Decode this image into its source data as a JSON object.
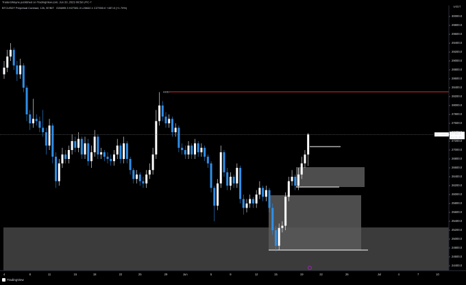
{
  "header": {
    "publisher": "TradersWayne published on TradingView.com, Jun 20, 2023 09:58 UTC-7",
    "logo": "TradingView"
  },
  "chart_data": {
    "type": "candlestick",
    "title": "BTCUSDT Perpetual Contract, 12h, BYBIT",
    "ohlc_label": "O26899.3 H27381.3 L26642.1 C27350.0 +457.8 (+1.70%)",
    "y_unit": "USDT",
    "annotations": [
      "HOD"
    ],
    "symbol_tag": "BTCUSDT P",
    "last_price_label": "27350.0",
    "countdown": "01:01:35",
    "up_color": "#ffffff",
    "down_color": "#2f8fe8",
    "ylim": [
      24292,
      30246
    ],
    "grid": false,
    "yticks": [
      {
        "value": 24400,
        "label": "24400.0"
      },
      {
        "value": 24600,
        "label": "24600.0"
      },
      {
        "value": 24800,
        "label": "24800.0"
      },
      {
        "value": 25000,
        "label": "25000.0"
      },
      {
        "value": 25200,
        "label": "25200.0"
      },
      {
        "value": 25400,
        "label": "25400.0"
      },
      {
        "value": 25600,
        "label": "25600.0"
      },
      {
        "value": 25800,
        "label": "25800.0"
      },
      {
        "value": 26000,
        "label": "26000.0"
      },
      {
        "value": 26200,
        "label": "26200.0"
      },
      {
        "value": 26400,
        "label": "26400.0"
      },
      {
        "value": 26600,
        "label": "26600.0"
      },
      {
        "value": 26800,
        "label": "26800.0"
      },
      {
        "value": 27000,
        "label": "27000.0"
      },
      {
        "value": 27200,
        "label": "27200.0"
      },
      {
        "value": 27400,
        "label": "27400.0"
      },
      {
        "value": 27600,
        "label": "27600.0"
      },
      {
        "value": 27800,
        "label": "27800.0"
      },
      {
        "value": 28000,
        "label": "28000.0"
      },
      {
        "value": 28200,
        "label": "28200.0"
      },
      {
        "value": 28400,
        "label": "28400.0"
      },
      {
        "value": 28600,
        "label": "28600.0"
      },
      {
        "value": 28800,
        "label": "28800.0"
      },
      {
        "value": 29000,
        "label": "29000.0"
      },
      {
        "value": 29200,
        "label": "29200.0"
      },
      {
        "value": 29400,
        "label": "29400.0"
      },
      {
        "value": 29600,
        "label": "29600.0"
      },
      {
        "value": 29800,
        "label": "29800.0"
      },
      {
        "value": 30000,
        "label": "30000.0"
      }
    ],
    "categories": [
      "4",
      null,
      null,
      null,
      null,
      null,
      null,
      null,
      "8",
      null,
      null,
      null,
      null,
      null,
      "11",
      null,
      null,
      null,
      null,
      null,
      null,
      null,
      "15",
      null,
      null,
      null,
      null,
      null,
      "18",
      null,
      null,
      null,
      null,
      null,
      null,
      null,
      "22",
      null,
      null,
      null,
      null,
      null,
      "25",
      null,
      null,
      null,
      null,
      null,
      null,
      null,
      "29",
      null,
      null,
      null,
      null,
      null,
      "Jun",
      null,
      null,
      null,
      null,
      null,
      null,
      null,
      "5",
      null,
      null,
      null,
      null,
      null,
      "8",
      null,
      null,
      null,
      null,
      null,
      null,
      null,
      "12",
      null,
      null,
      null,
      null,
      null,
      "15",
      null,
      null,
      null,
      null,
      null,
      null,
      null,
      "19",
      null,
      null,
      null,
      null,
      null,
      "22",
      null,
      null,
      null,
      null,
      null,
      null,
      null,
      "26",
      null,
      null,
      null,
      null,
      null,
      null,
      null,
      null,
      null,
      "Jul",
      null,
      null,
      null,
      null,
      null,
      "4",
      null,
      null,
      null,
      null,
      null,
      "7",
      null,
      null,
      null,
      null,
      null,
      "10",
      null,
      null,
      null
    ],
    "open": [
      28700,
      28850,
      29100,
      29250,
      28900,
      28700,
      28900,
      28400,
      27800,
      27600,
      27700,
      27650,
      27500,
      27400,
      27100,
      27550,
      26850,
      26300,
      26700,
      26900,
      26800,
      27000,
      27200,
      27050,
      27250,
      26900,
      27150,
      26750,
      26950,
      27300,
      26900,
      26950,
      26850,
      26800,
      26750,
      26900,
      27100,
      26800,
      27150,
      26800,
      26550,
      26350,
      26450,
      26300,
      26250,
      26450,
      26550,
      26900,
      27650,
      28000,
      27750,
      27600,
      27700,
      27400,
      27500,
      27050,
      27000,
      26900,
      27100,
      26900,
      27150,
      26950,
      27050,
      26850,
      26700,
      26150,
      25750,
      26250,
      26950,
      26500,
      26200,
      26400,
      26250,
      26600,
      25900,
      25700,
      25800,
      25900,
      25800,
      26000,
      26150,
      25950,
      26100,
      25700,
      25200,
      24850,
      25250,
      25300,
      25950,
      26300,
      26400,
      26200,
      26450,
      26700,
      26899.3,
      null,
      null,
      null,
      null,
      null,
      null,
      null,
      null,
      null,
      null,
      null,
      null,
      null,
      null,
      null,
      null,
      null,
      null,
      null,
      null,
      null,
      null,
      null,
      null,
      null,
      null,
      null,
      null,
      null,
      null,
      null,
      null,
      null,
      null,
      null,
      null,
      null,
      null,
      null,
      null,
      null,
      null,
      null
    ],
    "high": [
      29000,
      29250,
      29400,
      29300,
      29000,
      29050,
      28950,
      28450,
      27900,
      28150,
      27800,
      27750,
      27900,
      27500,
      27700,
      27600,
      26950,
      26800,
      27050,
      27000,
      27100,
      27350,
      27300,
      27400,
      27300,
      27300,
      27250,
      27100,
      27450,
      27350,
      27050,
      27000,
      26950,
      26900,
      27000,
      27250,
      27150,
      27300,
      27200,
      26850,
      26600,
      26550,
      26500,
      26400,
      26550,
      26700,
      27050,
      27900,
      28300,
      28100,
      27850,
      27800,
      27750,
      27600,
      27550,
      27150,
      27100,
      27200,
      27150,
      27250,
      27200,
      27150,
      27100,
      26900,
      26750,
      26200,
      26350,
      27100,
      27000,
      26600,
      26500,
      26450,
      26700,
      26650,
      26000,
      25900,
      26000,
      25950,
      26100,
      26300,
      26200,
      26200,
      26150,
      25800,
      25300,
      25350,
      25400,
      26050,
      26400,
      26550,
      26450,
      26600,
      26850,
      27000,
      27381.3,
      null,
      null,
      null,
      null,
      null,
      null,
      null,
      null,
      null,
      null,
      null,
      null,
      null,
      null,
      null,
      null,
      null,
      null,
      null,
      null,
      null,
      null,
      null,
      null,
      null,
      null,
      null,
      null,
      null,
      null,
      null,
      null,
      null,
      null,
      null,
      null,
      null,
      null,
      null,
      null,
      null,
      null,
      null
    ],
    "low": [
      28600,
      28750,
      29000,
      28800,
      28550,
      28600,
      28300,
      27650,
      27450,
      27500,
      27550,
      27400,
      27300,
      26900,
      27000,
      26700,
      26150,
      26200,
      26600,
      26700,
      26700,
      26900,
      26950,
      26950,
      26800,
      26800,
      26650,
      26600,
      26850,
      26800,
      26800,
      26750,
      26700,
      26650,
      26650,
      26800,
      26700,
      26700,
      26700,
      26450,
      26250,
      26250,
      26200,
      26150,
      26150,
      26350,
      26450,
      26800,
      27550,
      27650,
      27500,
      27500,
      27300,
      27300,
      26950,
      26900,
      26800,
      26800,
      26800,
      26800,
      26850,
      26850,
      26750,
      26600,
      26050,
      25400,
      25650,
      26150,
      26400,
      26100,
      26100,
      26150,
      26150,
      25800,
      25550,
      25600,
      25700,
      25700,
      25700,
      25900,
      25850,
      25850,
      25600,
      25100,
      24720,
      24750,
      25150,
      25200,
      25850,
      26200,
      26100,
      26100,
      26350,
      26600,
      26642.1,
      null,
      null,
      null,
      null,
      null,
      null,
      null,
      null,
      null,
      null,
      null,
      null,
      null,
      null,
      null,
      null,
      null,
      null,
      null,
      null,
      null,
      null,
      null,
      null,
      null,
      null,
      null,
      null,
      null,
      null,
      null,
      null,
      null,
      null,
      null,
      null,
      null,
      null,
      null,
      null,
      null,
      null,
      null
    ],
    "close": [
      28850,
      29100,
      29250,
      28900,
      28700,
      28900,
      28400,
      27800,
      27600,
      27700,
      27650,
      27500,
      27400,
      27100,
      27550,
      26850,
      26300,
      26700,
      26900,
      26800,
      27000,
      27200,
      27050,
      27250,
      26900,
      27150,
      26750,
      26950,
      27300,
      26900,
      26950,
      26850,
      26800,
      26750,
      26900,
      27100,
      26800,
      27150,
      26800,
      26550,
      26350,
      26450,
      26300,
      26250,
      26450,
      26550,
      26900,
      27650,
      28000,
      27750,
      27600,
      27700,
      27400,
      27500,
      27050,
      27000,
      26900,
      27100,
      26900,
      27150,
      26950,
      27050,
      26850,
      26700,
      26150,
      25750,
      26250,
      26950,
      26500,
      26200,
      26400,
      26250,
      26600,
      25900,
      25700,
      25800,
      25900,
      25800,
      26000,
      26150,
      25950,
      26100,
      25700,
      25200,
      24850,
      25250,
      25300,
      25950,
      26300,
      26400,
      26200,
      26450,
      26700,
      26899.3,
      27350,
      null,
      null,
      null,
      null,
      null,
      null,
      null,
      null,
      null,
      null,
      null,
      null,
      null,
      null,
      null,
      null,
      null,
      null,
      null,
      null,
      null,
      null,
      null,
      null,
      null,
      null,
      null,
      null,
      null,
      null,
      null,
      null,
      null,
      null,
      null,
      null,
      null,
      null,
      null,
      null,
      null,
      null,
      null
    ]
  }
}
